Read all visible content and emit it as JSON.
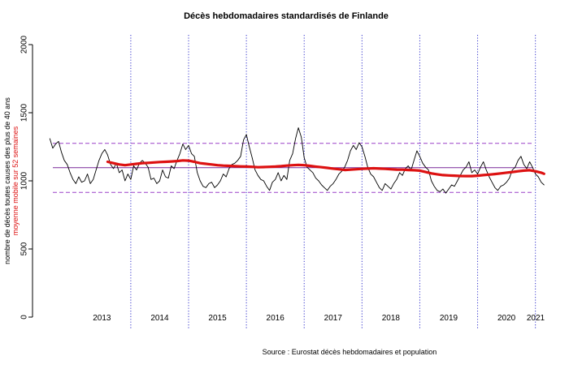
{
  "chart_data": {
    "type": "line",
    "title": "Décès hebdomadaires standardisés de Finlande",
    "ylabel": "nombre de décès toutes causes des plus de 40 ans",
    "ylabel_secondary": "moyenne mobile sur 52 semaines",
    "source": "Source : Eurostat décès hebdomadaires et population",
    "ylim": [
      0,
      2000
    ],
    "yticks": [
      0,
      500,
      1000,
      1500,
      2000
    ],
    "year_labels": [
      "2013",
      "2014",
      "2015",
      "2016",
      "2017",
      "2018",
      "2019",
      "2020",
      "2021"
    ],
    "year_boundaries": [
      2014,
      2015,
      2016,
      2017,
      2018,
      2019,
      2020,
      2021
    ],
    "xlim": [
      2012.3,
      2021.3
    ],
    "reference_lines": {
      "mean": 1097,
      "upper": 1275,
      "lower": 915,
      "colors": {
        "mean": "#7a2a9a",
        "band": "#9a40c8"
      }
    },
    "series": [
      {
        "name": "",
        "color": "#000000",
        "x": [
          2012.6,
          2012.65,
          2012.7,
          2012.75,
          2012.8,
          2012.85,
          2012.9,
          2012.95,
          2013.0,
          2013.05,
          2013.1,
          2013.15,
          2013.2,
          2013.25,
          2013.3,
          2013.35,
          2013.4,
          2013.45,
          2013.5,
          2013.55,
          2013.6,
          2013.65,
          2013.7,
          2013.75,
          2013.8,
          2013.85,
          2013.9,
          2013.95,
          2014.0,
          2014.05,
          2014.1,
          2014.15,
          2014.2,
          2014.25,
          2014.3,
          2014.35,
          2014.4,
          2014.45,
          2014.5,
          2014.55,
          2014.6,
          2014.65,
          2014.7,
          2014.75,
          2014.8,
          2014.85,
          2014.9,
          2014.95,
          2015.0,
          2015.05,
          2015.1,
          2015.15,
          2015.2,
          2015.25,
          2015.3,
          2015.35,
          2015.4,
          2015.45,
          2015.5,
          2015.55,
          2015.6,
          2015.65,
          2015.7,
          2015.75,
          2015.8,
          2015.85,
          2015.9,
          2015.95,
          2016.0,
          2016.05,
          2016.1,
          2016.15,
          2016.2,
          2016.25,
          2016.3,
          2016.35,
          2016.4,
          2016.45,
          2016.5,
          2016.55,
          2016.6,
          2016.65,
          2016.7,
          2016.75,
          2016.8,
          2016.85,
          2016.9,
          2016.95,
          2017.0,
          2017.05,
          2017.1,
          2017.15,
          2017.2,
          2017.25,
          2017.3,
          2017.35,
          2017.4,
          2017.45,
          2017.5,
          2017.55,
          2017.6,
          2017.65,
          2017.7,
          2017.75,
          2017.8,
          2017.85,
          2017.9,
          2017.95,
          2018.0,
          2018.05,
          2018.1,
          2018.15,
          2018.2,
          2018.25,
          2018.3,
          2018.35,
          2018.4,
          2018.45,
          2018.5,
          2018.55,
          2018.6,
          2018.65,
          2018.7,
          2018.75,
          2018.8,
          2018.85,
          2018.9,
          2018.95,
          2019.0,
          2019.05,
          2019.1,
          2019.15,
          2019.2,
          2019.25,
          2019.3,
          2019.35,
          2019.4,
          2019.45,
          2019.5,
          2019.55,
          2019.6,
          2019.65,
          2019.7,
          2019.75,
          2019.8,
          2019.85,
          2019.9,
          2019.95,
          2020.0,
          2020.05,
          2020.1,
          2020.15,
          2020.2,
          2020.25,
          2020.3,
          2020.35,
          2020.4,
          2020.45,
          2020.5,
          2020.55,
          2020.6,
          2020.65,
          2020.7,
          2020.75,
          2020.8,
          2020.85,
          2020.9,
          2020.95,
          2021.0,
          2021.05,
          2021.1,
          2021.15
        ],
        "values": [
          1310,
          1240,
          1270,
          1290,
          1210,
          1150,
          1120,
          1060,
          1010,
          980,
          1030,
          990,
          1000,
          1050,
          980,
          1010,
          1080,
          1150,
          1200,
          1230,
          1190,
          1120,
          1090,
          1130,
          1060,
          1080,
          1000,
          1050,
          1010,
          1110,
          1080,
          1130,
          1150,
          1130,
          1100,
          1010,
          1020,
          980,
          1000,
          1080,
          1030,
          1020,
          1110,
          1090,
          1150,
          1200,
          1270,
          1230,
          1260,
          1200,
          1180,
          1060,
          1000,
          960,
          950,
          980,
          990,
          950,
          970,
          1000,
          1050,
          1030,
          1090,
          1120,
          1130,
          1150,
          1180,
          1300,
          1340,
          1250,
          1170,
          1080,
          1040,
          1010,
          1000,
          960,
          930,
          990,
          1010,
          1060,
          1000,
          1040,
          1010,
          1150,
          1200,
          1310,
          1390,
          1320,
          1170,
          1100,
          1080,
          1060,
          1020,
          1000,
          970,
          950,
          930,
          960,
          980,
          1010,
          1050,
          1070,
          1100,
          1150,
          1220,
          1260,
          1230,
          1280,
          1250,
          1180,
          1100,
          1050,
          1030,
          990,
          950,
          930,
          980,
          960,
          940,
          980,
          1010,
          1060,
          1040,
          1090,
          1110,
          1080,
          1150,
          1220,
          1180,
          1130,
          1100,
          1080,
          1000,
          960,
          930,
          920,
          940,
          910,
          940,
          970,
          960,
          1000,
          1040,
          1080,
          1100,
          1140,
          1060,
          1080,
          1050,
          1100,
          1140,
          1080,
          1030,
          990,
          950,
          930,
          960,
          970,
          990,
          1020,
          1080,
          1100,
          1150,
          1180,
          1120,
          1090,
          1140,
          1100,
          1050,
          1030,
          990,
          970
        ]
      },
      {
        "name": "moyenne mobile sur 52 semaines",
        "color": "#dd1111",
        "x": [
          2013.6,
          2013.7,
          2013.8,
          2013.9,
          2014.0,
          2014.1,
          2014.2,
          2014.3,
          2014.4,
          2014.5,
          2014.6,
          2014.7,
          2014.8,
          2014.9,
          2015.0,
          2015.1,
          2015.2,
          2015.3,
          2015.4,
          2015.5,
          2015.6,
          2015.7,
          2015.8,
          2015.9,
          2016.0,
          2016.1,
          2016.2,
          2016.3,
          2016.4,
          2016.5,
          2016.6,
          2016.7,
          2016.8,
          2016.9,
          2017.0,
          2017.1,
          2017.2,
          2017.3,
          2017.4,
          2017.5,
          2017.6,
          2017.7,
          2017.8,
          2017.9,
          2018.0,
          2018.1,
          2018.2,
          2018.3,
          2018.4,
          2018.5,
          2018.6,
          2018.7,
          2018.8,
          2018.9,
          2019.0,
          2019.1,
          2019.2,
          2019.3,
          2019.4,
          2019.5,
          2019.6,
          2019.7,
          2019.8,
          2019.9,
          2020.0,
          2020.1,
          2020.2,
          2020.3,
          2020.4,
          2020.5,
          2020.6,
          2020.7,
          2020.8,
          2020.9,
          2021.0,
          2021.1,
          2021.15
        ],
        "values": [
          1140,
          1130,
          1120,
          1115,
          1120,
          1125,
          1130,
          1132,
          1135,
          1138,
          1140,
          1142,
          1145,
          1150,
          1148,
          1140,
          1130,
          1125,
          1120,
          1115,
          1112,
          1110,
          1108,
          1106,
          1105,
          1103,
          1100,
          1101,
          1103,
          1105,
          1108,
          1112,
          1115,
          1117,
          1115,
          1110,
          1105,
          1100,
          1095,
          1090,
          1085,
          1080,
          1082,
          1085,
          1088,
          1090,
          1092,
          1090,
          1088,
          1085,
          1083,
          1082,
          1080,
          1078,
          1075,
          1065,
          1055,
          1048,
          1042,
          1040,
          1038,
          1036,
          1035,
          1035,
          1038,
          1042,
          1046,
          1050,
          1055,
          1060,
          1065,
          1070,
          1075,
          1078,
          1070,
          1060,
          1052
        ]
      }
    ]
  }
}
